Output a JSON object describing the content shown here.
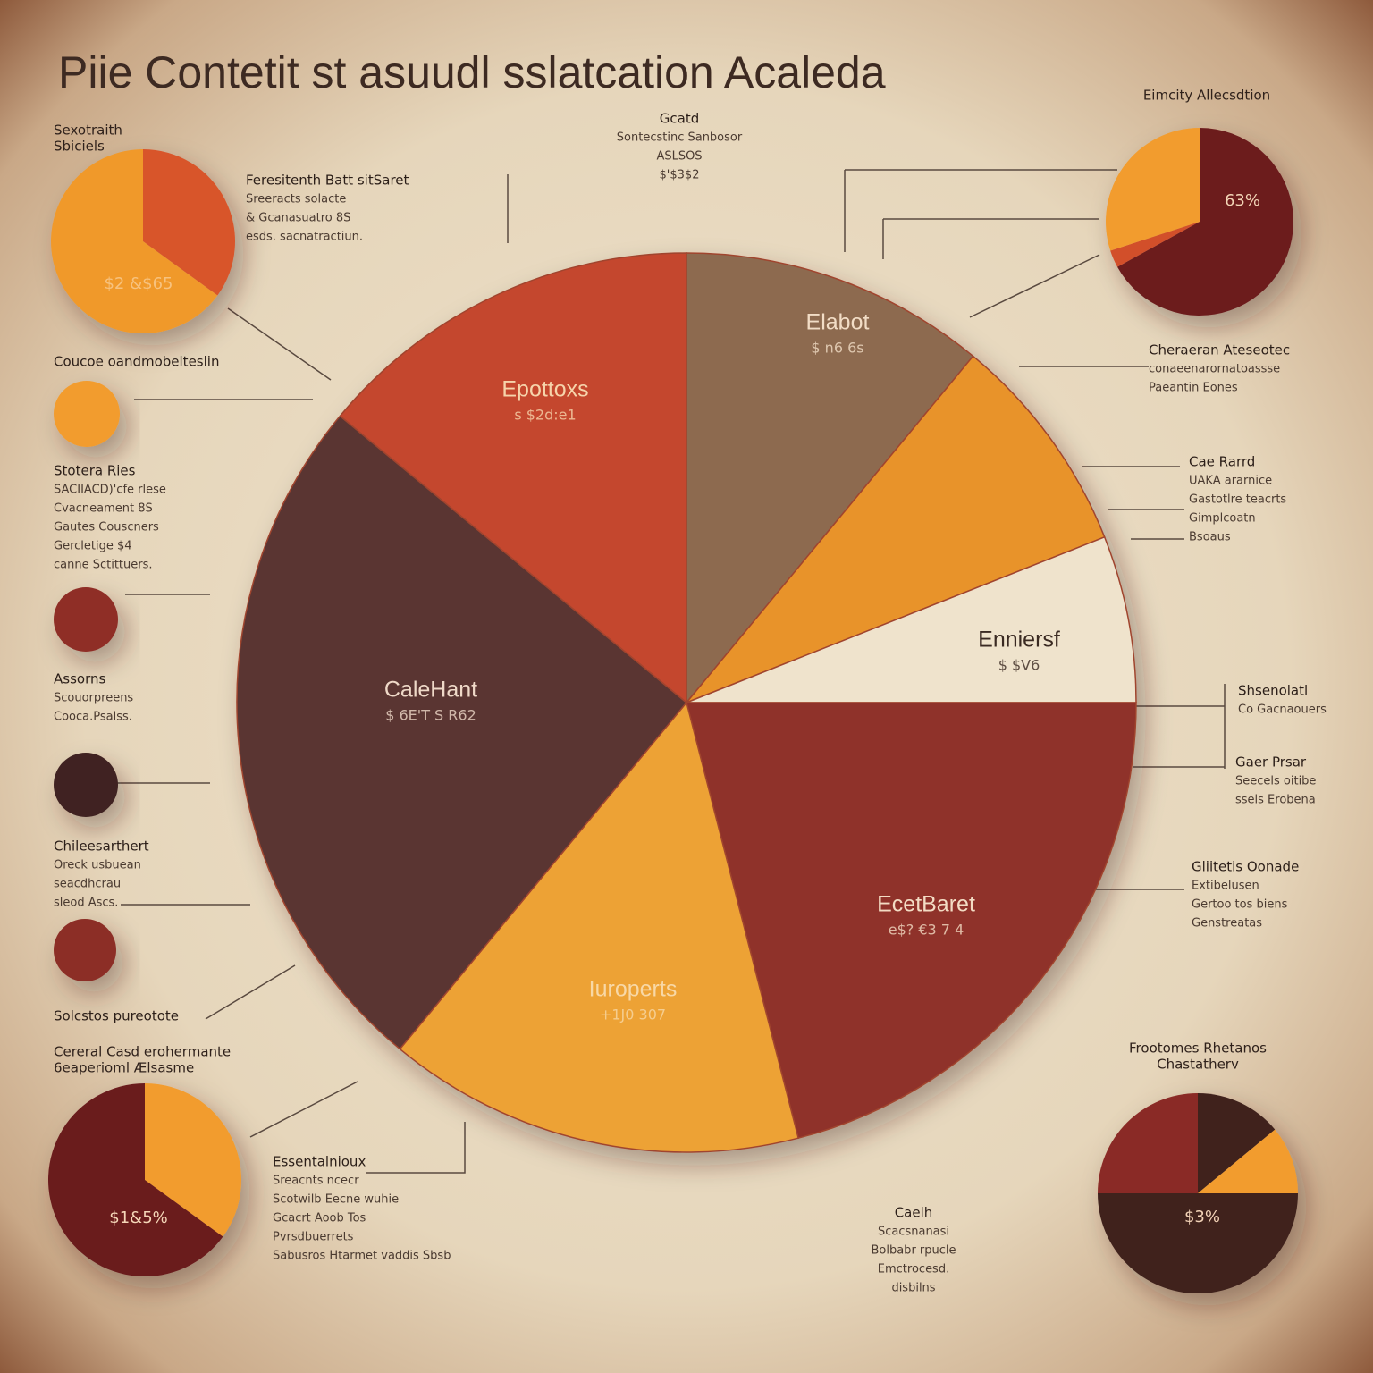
{
  "chart_data": [
    {
      "type": "pie",
      "title": "Piie Contetit st asuudl sslatcation Acaleda",
      "categories": [
        "Elabot",
        null,
        "Enniersf",
        "EcetBaret",
        "Iuroperts",
        "CaleHant",
        "Epottoxs"
      ],
      "sublabels": [
        "$ n6 6s",
        null,
        "$ $V6",
        "e$? €3 7 4",
        "+1J0 307",
        "$ 6E'T S R62",
        "s $2d:e1"
      ],
      "values": [
        11,
        8,
        6,
        21,
        15,
        25,
        14
      ],
      "colors": [
        "#8d6a4f",
        "#e8932a",
        "#efe3cc",
        "#8f3229",
        "#eda234",
        "#5a3633",
        "#c4462e"
      ]
    },
    {
      "type": "pie",
      "title": [
        "Sexotraith",
        "Sbiciels"
      ],
      "center_label": "$2 &$65",
      "values": [
        35,
        65
      ],
      "colors": [
        "#d8552b",
        "#f0992c"
      ]
    },
    {
      "type": "pie",
      "title": [
        "Eimcity Allecsdtion"
      ],
      "center_label": "63%",
      "values": [
        67,
        3,
        30
      ],
      "colors": [
        "#6c1b1f",
        "#d2502a",
        "#f29c2e"
      ]
    },
    {
      "type": "pie",
      "title": [
        "Cereral Casd erohermante",
        "6eaperioml Ælsasme"
      ],
      "center_label": "$1&5%",
      "values": [
        35,
        65
      ],
      "colors": [
        "#f29c2e",
        "#6a1a1e"
      ]
    },
    {
      "type": "pie",
      "title": [
        "Frootomes Rhetanos",
        "Chastatherv"
      ],
      "center_label": "$3%",
      "values": [
        14,
        11,
        50,
        25
      ],
      "colors": [
        "#40231f",
        "#f29c2e",
        "#40231f",
        "#8a2b25"
      ]
    }
  ],
  "annotations": [
    {
      "lines": [
        "Gcatd",
        "Sontecstinc Sanbosor",
        "ASLSOS",
        "$'$3$2"
      ]
    },
    {
      "lines": [
        "Feresitenth Batt sitSaret",
        "Sreeracts solacte",
        "& Gcanasuatro 8S",
        "esds. sacnatractiun."
      ]
    },
    {
      "lines": [
        "Coucoe oandmobelteslin"
      ]
    },
    {
      "lines": [
        "Stotera Ries",
        "SACIIACD)'cfe rlese",
        "Cvacneament 8S",
        "Gautes Couscners",
        "Gercletige $4",
        "canne Sctittuers."
      ]
    },
    {
      "lines": [
        "Assorns",
        "Scouorpreens",
        "Cooca.Psalss."
      ]
    },
    {
      "lines": [
        "Chileesarthert",
        "Oreck usbuean",
        "seacdhcrau",
        "sleod Ascs."
      ]
    },
    {
      "lines": [
        "Solcstos pureotote"
      ]
    },
    {
      "lines": [
        "Essentalnioux",
        "Sreacnts ncecr",
        "Scotwilb Eecne wuhie",
        "Gcacrt Aoob Tos",
        "Pvrsdbuerrets",
        "Sabusros Htarmet vaddis Sbsb"
      ]
    },
    {
      "lines": [
        "Caelh",
        "Scacsnanasi",
        "Bolbabr rpucle",
        "Emctrocesd.",
        "disbilns"
      ]
    },
    {
      "lines": [
        "Cheraeran Ateseotec",
        "conaeenarornatoassse",
        "Paeantin Eones"
      ]
    },
    {
      "lines": [
        "Cae Rarrd",
        "UAKA ararnice",
        "Gastotlre teacrts",
        "Gimplcoatn",
        "Bsoaus"
      ]
    },
    {
      "lines": [
        "Shsenolatl",
        "Co Gacnaouers"
      ]
    },
    {
      "lines": [
        "Gaer Prsar",
        "Seecels oitibe",
        "ssels Erobena"
      ]
    },
    {
      "lines": [
        "Gliitetis Oonade",
        "Extibelusen",
        "Gertoo tos biens",
        "Genstreatas"
      ]
    }
  ]
}
